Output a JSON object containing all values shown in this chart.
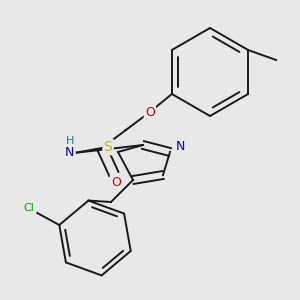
{
  "background_color": "#e8e8e8",
  "bond_color": "#1a1a1a",
  "figsize": [
    3.0,
    3.0
  ],
  "dpi": 100,
  "atoms": {
    "S": {
      "color": "#bbbb00",
      "fontsize": 10
    },
    "N": {
      "color": "#0000cc",
      "fontsize": 9
    },
    "O": {
      "color": "#cc0000",
      "fontsize": 9
    },
    "Cl": {
      "color": "#00aa00",
      "fontsize": 8
    },
    "H": {
      "color": "#008888",
      "fontsize": 8
    }
  },
  "line_width": 1.4,
  "dbo": 0.013
}
